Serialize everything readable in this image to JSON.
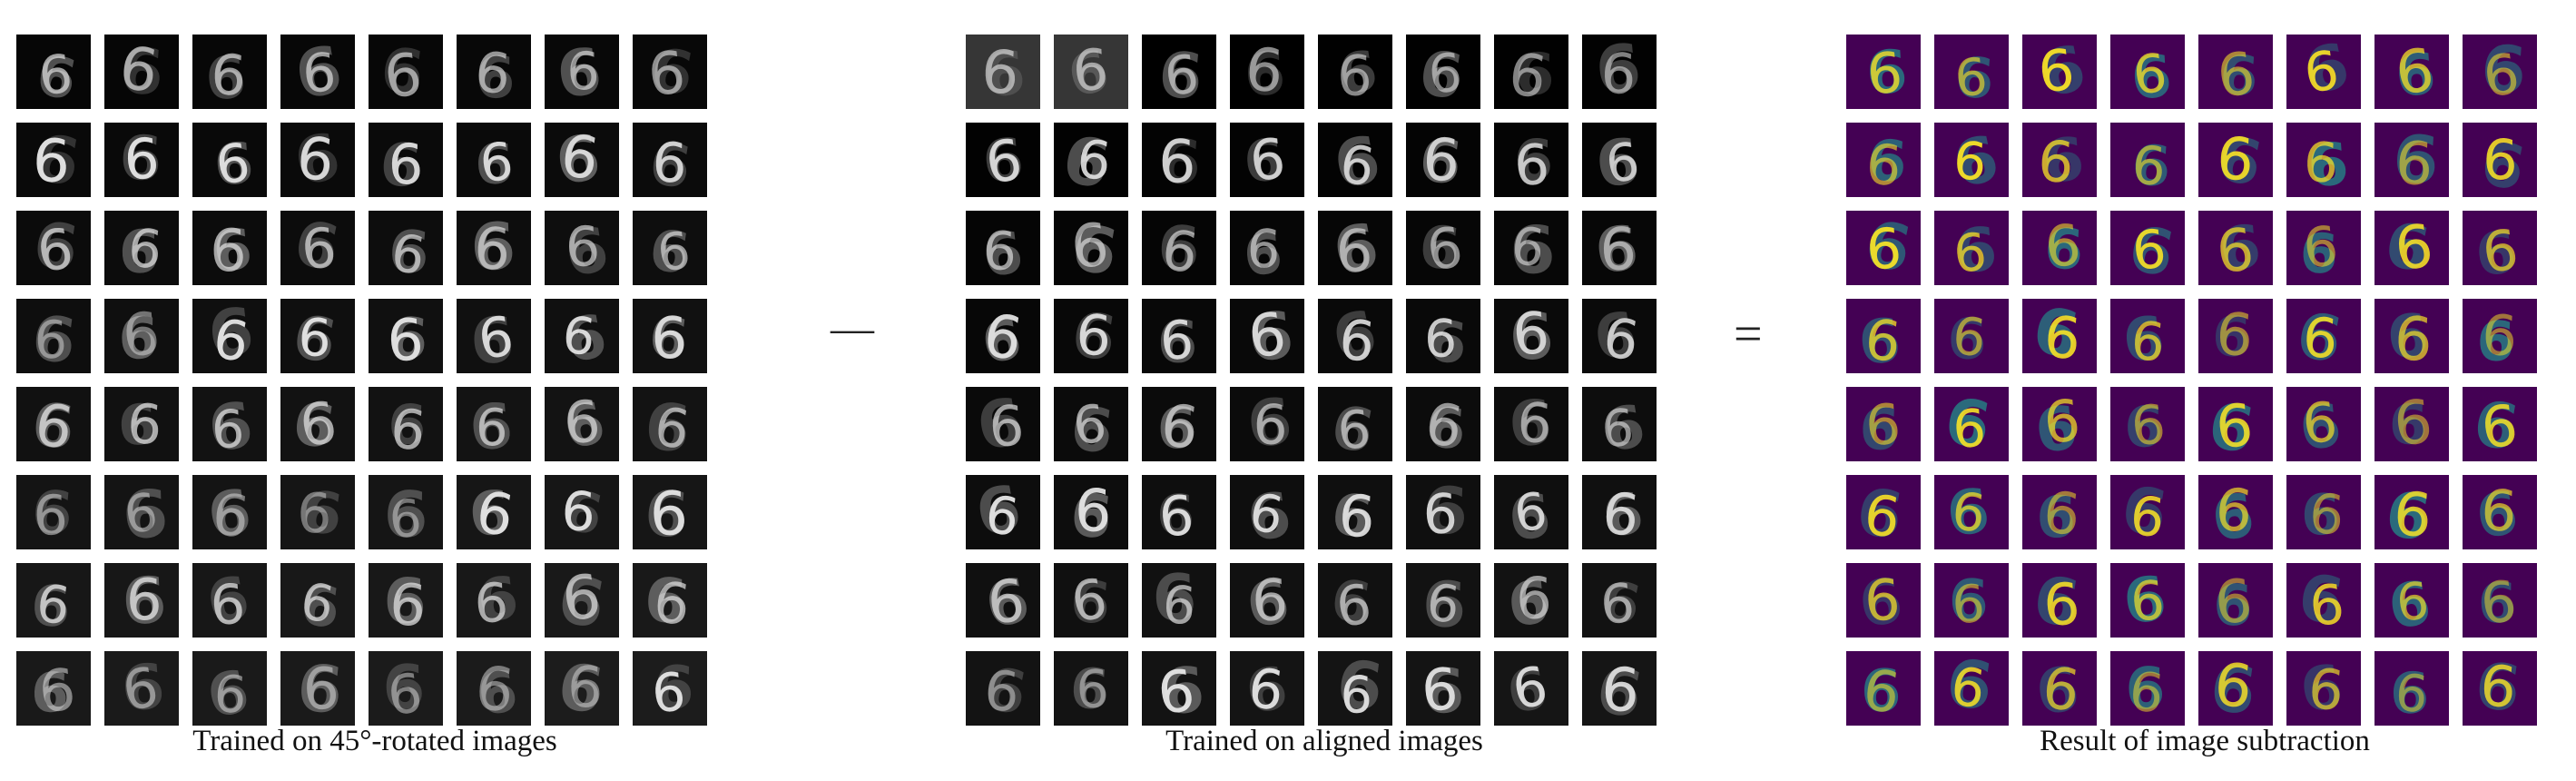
{
  "figure": {
    "panels": [
      {
        "id": "rotated",
        "caption": "Trained on 45°-rotated images",
        "colormap": "gray",
        "tile_rows": 8,
        "tile_cols": 8
      },
      {
        "id": "aligned",
        "caption": "Trained on aligned images",
        "colormap": "gray",
        "tile_rows": 8,
        "tile_cols": 8
      },
      {
        "id": "difference",
        "caption": "Result of image subtraction",
        "colormap": "viridis",
        "tile_rows": 8,
        "tile_cols": 8
      }
    ],
    "operators": {
      "minus": "—",
      "equals": "="
    },
    "tile_glyph": "6",
    "colors": {
      "gray_background": "#000000",
      "gray_stroke": "#e8e8e8",
      "viridis_background": "#440154",
      "viridis_mid": "#21918c",
      "viridis_high": "#fde725"
    }
  }
}
